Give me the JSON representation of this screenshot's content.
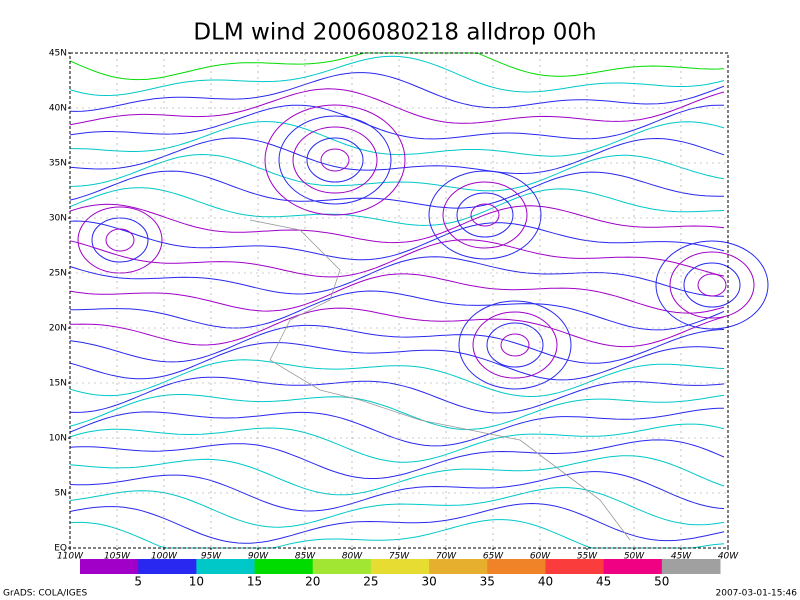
{
  "header": {
    "title": "DLM wind 2006080218 alldrop 00h"
  },
  "map": {
    "lat_labels": [
      "45N",
      "40N",
      "35N",
      "30N",
      "25N",
      "20N",
      "15N",
      "10N",
      "5N",
      "EQ"
    ],
    "lon_labels": [
      "110W",
      "105W",
      "100W",
      "95W",
      "90W",
      "85W",
      "80W",
      "75W",
      "70W",
      "65W",
      "60W",
      "55W",
      "50W",
      "45W",
      "40W"
    ]
  },
  "colorbar": {
    "colors": [
      "#a000c8",
      "#2828f0",
      "#00c8c8",
      "#00dc00",
      "#a0e632",
      "#e6dc32",
      "#e6af2d",
      "#f08228",
      "#fa3c3c",
      "#f00082",
      "#a0a0a0"
    ],
    "labels": [
      "5",
      "10",
      "15",
      "20",
      "25",
      "30",
      "35",
      "40",
      "45",
      "50"
    ]
  },
  "footer": {
    "left": "GrADS: COLA/IGES",
    "right": "2007-03-01-15:46"
  }
}
